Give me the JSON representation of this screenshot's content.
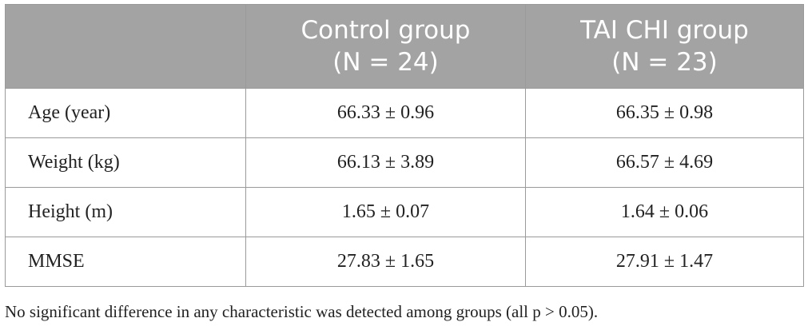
{
  "table": {
    "header": [
      "",
      "Control group",
      "TAI CHI group"
    ],
    "header_n": [
      "",
      "(N = 24)",
      "(N = 23)"
    ],
    "rows": [
      [
        "Age (year)",
        "66.33 ± 0.96",
        "66.35 ± 0.98"
      ],
      [
        "Weight (kg)",
        "66.13 ± 3.89",
        "66.57 ± 4.69"
      ],
      [
        "Height (m)",
        "1.65 ± 0.07",
        "1.64 ± 0.06"
      ],
      [
        "MMSE",
        "27.83 ± 1.65",
        "27.91 ± 1.47"
      ]
    ]
  },
  "footnote": "No significant difference in any characteristic was detected among groups (all p > 0.05)."
}
